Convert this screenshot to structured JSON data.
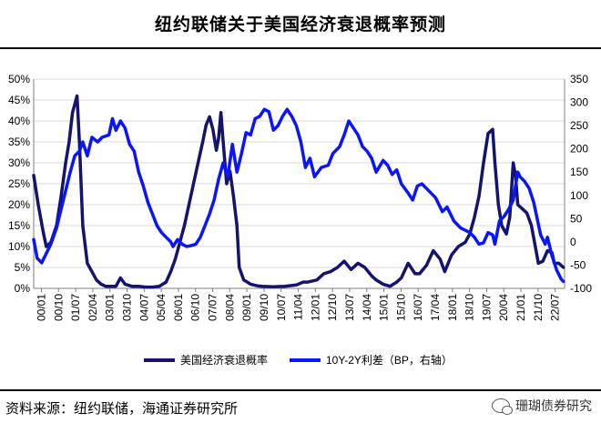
{
  "header": {
    "title": "纽约联储关于美国经济衰退概率预测"
  },
  "footer": {
    "source": "资料来源：纽约联储，海通证券研究所",
    "watermark": "珊瑚债券研究"
  },
  "colors": {
    "recession_line": "#14146e",
    "spread_line": "#0a14ff",
    "grid": "#d9d9d9",
    "axis": "#7f7f7f"
  },
  "chart_data": {
    "type": "line",
    "title": "纽约联储关于美国经济衰退概率预测",
    "x_tick_labels": [
      "00/01",
      "00/10",
      "01/07",
      "02/04",
      "03/01",
      "03/10",
      "04/07",
      "05/04",
      "06/01",
      "06/10",
      "07/07",
      "08/04",
      "09/01",
      "09/10",
      "10/07",
      "11/04",
      "12/01",
      "12/10",
      "13/07",
      "14/04",
      "15/01",
      "15/10",
      "16/07",
      "17/04",
      "18/01",
      "18/10",
      "19/07",
      "20/04",
      "21/01",
      "21/10",
      "22/07"
    ],
    "x_range": [
      2000.0,
      2023.25
    ],
    "y_left": {
      "ticks": [
        "0%",
        "5%",
        "10%",
        "15%",
        "20%",
        "25%",
        "30%",
        "35%",
        "40%",
        "45%",
        "50%"
      ],
      "range": [
        0,
        50
      ]
    },
    "y_right": {
      "ticks": [
        "-100",
        "-50",
        "0",
        "50",
        "100",
        "150",
        "200",
        "250",
        "300",
        "350"
      ],
      "range": [
        -100,
        350
      ]
    },
    "legend_position": "bottom",
    "series": [
      {
        "name": "美国经济衰退概率",
        "axis": "left",
        "points": [
          [
            2000.0,
            27
          ],
          [
            2000.2,
            20
          ],
          [
            2000.4,
            14
          ],
          [
            2000.55,
            10
          ],
          [
            2000.75,
            11
          ],
          [
            2001.0,
            15
          ],
          [
            2001.2,
            22
          ],
          [
            2001.4,
            30
          ],
          [
            2001.55,
            35
          ],
          [
            2001.7,
            42
          ],
          [
            2001.9,
            46
          ],
          [
            2002.0,
            35
          ],
          [
            2002.15,
            15
          ],
          [
            2002.35,
            6
          ],
          [
            2002.55,
            4
          ],
          [
            2002.75,
            2
          ],
          [
            2002.95,
            1
          ],
          [
            2003.15,
            0.5
          ],
          [
            2003.4,
            0.5
          ],
          [
            2003.6,
            0.5
          ],
          [
            2003.8,
            2.5
          ],
          [
            2004.0,
            1
          ],
          [
            2004.3,
            0.5
          ],
          [
            2004.6,
            0.5
          ],
          [
            2004.9,
            0.3
          ],
          [
            2005.2,
            0.3
          ],
          [
            2005.5,
            0.5
          ],
          [
            2005.8,
            1.5
          ],
          [
            2006.0,
            4
          ],
          [
            2006.2,
            7
          ],
          [
            2006.4,
            11
          ],
          [
            2006.6,
            15
          ],
          [
            2006.8,
            20
          ],
          [
            2007.0,
            25
          ],
          [
            2007.2,
            30
          ],
          [
            2007.4,
            35
          ],
          [
            2007.55,
            39
          ],
          [
            2007.7,
            41
          ],
          [
            2007.85,
            38
          ],
          [
            2008.0,
            33
          ],
          [
            2008.1,
            36
          ],
          [
            2008.2,
            42
          ],
          [
            2008.3,
            35
          ],
          [
            2008.45,
            25
          ],
          [
            2008.6,
            28
          ],
          [
            2008.75,
            22
          ],
          [
            2008.9,
            15
          ],
          [
            2009.0,
            5
          ],
          [
            2009.2,
            2
          ],
          [
            2009.5,
            1
          ],
          [
            2009.8,
            0.6
          ],
          [
            2010.0,
            0.5
          ],
          [
            2010.5,
            0.4
          ],
          [
            2011.0,
            0.5
          ],
          [
            2011.5,
            0.8
          ],
          [
            2011.8,
            1.5
          ],
          [
            2012.0,
            1.5
          ],
          [
            2012.4,
            2
          ],
          [
            2012.7,
            3.5
          ],
          [
            2013.0,
            4
          ],
          [
            2013.3,
            5
          ],
          [
            2013.6,
            6.5
          ],
          [
            2013.9,
            4.5
          ],
          [
            2014.2,
            6
          ],
          [
            2014.5,
            5
          ],
          [
            2014.8,
            3
          ],
          [
            2015.0,
            2
          ],
          [
            2015.3,
            1
          ],
          [
            2015.6,
            0.5
          ],
          [
            2015.9,
            1.5
          ],
          [
            2016.1,
            2.5
          ],
          [
            2016.4,
            6
          ],
          [
            2016.7,
            3.5
          ],
          [
            2016.9,
            3.5
          ],
          [
            2017.2,
            5.5
          ],
          [
            2017.5,
            9
          ],
          [
            2017.8,
            7
          ],
          [
            2018.0,
            4
          ],
          [
            2018.3,
            8
          ],
          [
            2018.6,
            10
          ],
          [
            2018.9,
            11
          ],
          [
            2019.1,
            13
          ],
          [
            2019.3,
            17
          ],
          [
            2019.5,
            22
          ],
          [
            2019.7,
            30
          ],
          [
            2019.9,
            37
          ],
          [
            2020.1,
            38
          ],
          [
            2020.2,
            30
          ],
          [
            2020.35,
            20
          ],
          [
            2020.5,
            15
          ],
          [
            2020.7,
            13
          ],
          [
            2020.85,
            17
          ],
          [
            2021.0,
            30
          ],
          [
            2021.1,
            27
          ],
          [
            2021.2,
            20
          ],
          [
            2021.4,
            19
          ],
          [
            2021.6,
            18
          ],
          [
            2021.8,
            15
          ],
          [
            2022.0,
            9
          ],
          [
            2022.1,
            6
          ],
          [
            2022.3,
            6.5
          ],
          [
            2022.5,
            9
          ],
          [
            2022.7,
            8.5
          ],
          [
            2022.8,
            6
          ],
          [
            2023.0,
            6
          ],
          [
            2023.2,
            5
          ]
        ]
      },
      {
        "name": "10Y-2Y利差（BP，右轴）",
        "axis": "right",
        "points": [
          [
            2000.0,
            5
          ],
          [
            2000.15,
            -35
          ],
          [
            2000.35,
            -45
          ],
          [
            2000.55,
            -25
          ],
          [
            2000.75,
            -5
          ],
          [
            2001.0,
            30
          ],
          [
            2001.2,
            70
          ],
          [
            2001.4,
            110
          ],
          [
            2001.6,
            150
          ],
          [
            2001.8,
            185
          ],
          [
            2002.0,
            195
          ],
          [
            2002.15,
            215
          ],
          [
            2002.35,
            185
          ],
          [
            2002.55,
            225
          ],
          [
            2002.8,
            215
          ],
          [
            2003.0,
            225
          ],
          [
            2003.3,
            230
          ],
          [
            2003.45,
            265
          ],
          [
            2003.6,
            240
          ],
          [
            2003.8,
            260
          ],
          [
            2004.0,
            245
          ],
          [
            2004.2,
            210
          ],
          [
            2004.4,
            195
          ],
          [
            2004.6,
            150
          ],
          [
            2004.8,
            120
          ],
          [
            2005.0,
            85
          ],
          [
            2005.2,
            60
          ],
          [
            2005.4,
            35
          ],
          [
            2005.6,
            20
          ],
          [
            2005.8,
            10
          ],
          [
            2006.0,
            0
          ],
          [
            2006.1,
            -10
          ],
          [
            2006.3,
            5
          ],
          [
            2006.5,
            -5
          ],
          [
            2006.7,
            -10
          ],
          [
            2006.9,
            -8
          ],
          [
            2007.1,
            -5
          ],
          [
            2007.3,
            10
          ],
          [
            2007.5,
            35
          ],
          [
            2007.7,
            60
          ],
          [
            2007.9,
            90
          ],
          [
            2008.1,
            135
          ],
          [
            2008.3,
            170
          ],
          [
            2008.5,
            140
          ],
          [
            2008.7,
            210
          ],
          [
            2008.9,
            150
          ],
          [
            2009.1,
            190
          ],
          [
            2009.3,
            235
          ],
          [
            2009.5,
            230
          ],
          [
            2009.7,
            265
          ],
          [
            2009.9,
            270
          ],
          [
            2010.1,
            285
          ],
          [
            2010.3,
            280
          ],
          [
            2010.5,
            240
          ],
          [
            2010.7,
            250
          ],
          [
            2010.9,
            270
          ],
          [
            2011.1,
            285
          ],
          [
            2011.3,
            270
          ],
          [
            2011.5,
            250
          ],
          [
            2011.7,
            215
          ],
          [
            2011.9,
            160
          ],
          [
            2012.1,
            180
          ],
          [
            2012.3,
            140
          ],
          [
            2012.6,
            160
          ],
          [
            2012.9,
            165
          ],
          [
            2013.1,
            190
          ],
          [
            2013.4,
            205
          ],
          [
            2013.6,
            230
          ],
          [
            2013.8,
            260
          ],
          [
            2014.0,
            245
          ],
          [
            2014.2,
            230
          ],
          [
            2014.4,
            205
          ],
          [
            2014.6,
            195
          ],
          [
            2014.8,
            180
          ],
          [
            2015.0,
            150
          ],
          [
            2015.3,
            175
          ],
          [
            2015.5,
            165
          ],
          [
            2015.7,
            145
          ],
          [
            2015.9,
            155
          ],
          [
            2016.1,
            125
          ],
          [
            2016.4,
            105
          ],
          [
            2016.6,
            90
          ],
          [
            2016.8,
            120
          ],
          [
            2017.0,
            125
          ],
          [
            2017.3,
            110
          ],
          [
            2017.6,
            95
          ],
          [
            2017.9,
            65
          ],
          [
            2018.1,
            75
          ],
          [
            2018.4,
            45
          ],
          [
            2018.7,
            30
          ],
          [
            2018.9,
            25
          ],
          [
            2019.1,
            20
          ],
          [
            2019.3,
            10
          ],
          [
            2019.5,
            -5
          ],
          [
            2019.7,
            -2
          ],
          [
            2019.9,
            20
          ],
          [
            2020.1,
            15
          ],
          [
            2020.2,
            -5
          ],
          [
            2020.4,
            45
          ],
          [
            2020.6,
            55
          ],
          [
            2020.8,
            70
          ],
          [
            2021.0,
            90
          ],
          [
            2021.2,
            150
          ],
          [
            2021.3,
            140
          ],
          [
            2021.5,
            130
          ],
          [
            2021.7,
            115
          ],
          [
            2021.9,
            85
          ],
          [
            2022.05,
            50
          ],
          [
            2022.2,
            15
          ],
          [
            2022.4,
            -5
          ],
          [
            2022.5,
            10
          ],
          [
            2022.7,
            -30
          ],
          [
            2022.9,
            -60
          ],
          [
            2023.1,
            -80
          ],
          [
            2023.2,
            -85
          ]
        ]
      }
    ]
  }
}
